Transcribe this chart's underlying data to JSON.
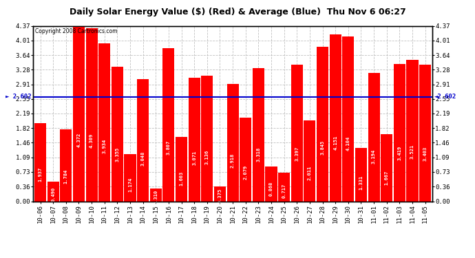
{
  "title": "Daily Solar Energy Value ($) (Red) & Average (Blue)  Thu Nov 6 06:27",
  "copyright": "Copyright 2008 Cartronics.com",
  "average": 2.602,
  "bar_color": "#ff0000",
  "average_color": "#0000cc",
  "bg_color": "#ffffff",
  "grid_color": "#c0c0c0",
  "categories": [
    "10-06",
    "10-07",
    "10-08",
    "10-09",
    "10-10",
    "10-11",
    "10-12",
    "10-13",
    "10-14",
    "10-15",
    "10-16",
    "10-17",
    "10-18",
    "10-19",
    "10-20",
    "10-21",
    "10-22",
    "10-23",
    "10-24",
    "10-25",
    "10-26",
    "10-27",
    "10-28",
    "10-29",
    "10-30",
    "10-31",
    "11-01",
    "11-02",
    "11-03",
    "11-04",
    "11-05"
  ],
  "values": [
    1.937,
    0.49,
    1.784,
    4.372,
    4.309,
    3.934,
    3.355,
    1.174,
    3.048,
    0.31,
    3.807,
    1.603,
    3.071,
    3.136,
    0.375,
    2.918,
    2.079,
    3.318,
    0.868,
    0.717,
    3.397,
    2.011,
    3.845,
    4.151,
    4.104,
    1.331,
    3.194,
    1.667,
    3.419,
    3.521,
    3.403
  ],
  "ylim": [
    0,
    4.37
  ],
  "yticks": [
    0.0,
    0.36,
    0.73,
    1.09,
    1.46,
    1.82,
    2.19,
    2.55,
    2.91,
    3.28,
    3.64,
    4.01,
    4.37
  ]
}
